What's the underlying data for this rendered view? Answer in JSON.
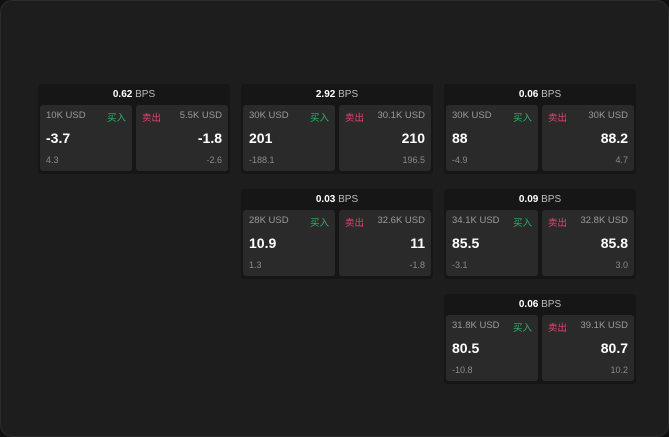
{
  "cards": [
    {
      "bps": "0.62",
      "bps_unit": "BPS",
      "bid_size": "10K USD",
      "buy_label": "买入",
      "bid": "-3.7",
      "bid_chg": "4.3",
      "sell_label": "卖出",
      "ask_size": "5.5K USD",
      "ask": "-1.8",
      "ask_chg": "-2.6"
    },
    {
      "bps": "2.92",
      "bps_unit": "BPS",
      "bid_size": "30K USD",
      "buy_label": "买入",
      "bid": "201",
      "bid_chg": "-188.1",
      "sell_label": "卖出",
      "ask_size": "30.1K USD",
      "ask": "210",
      "ask_chg": "196.5"
    },
    {
      "bps": "0.06",
      "bps_unit": "BPS",
      "bid_size": "30K USD",
      "buy_label": "买入",
      "bid": "88",
      "bid_chg": "-4.9",
      "sell_label": "卖出",
      "ask_size": "30K USD",
      "ask": "88.2",
      "ask_chg": "4.7"
    },
    {
      "bps": "0.03",
      "bps_unit": "BPS",
      "bid_size": "28K USD",
      "buy_label": "买入",
      "bid": "10.9",
      "bid_chg": "1.3",
      "sell_label": "卖出",
      "ask_size": "32.6K USD",
      "ask": "11",
      "ask_chg": "-1.8"
    },
    {
      "bps": "0.09",
      "bps_unit": "BPS",
      "bid_size": "34.1K USD",
      "buy_label": "买入",
      "bid": "85.5",
      "bid_chg": "-3.1",
      "sell_label": "卖出",
      "ask_size": "32.8K USD",
      "ask": "85.8",
      "ask_chg": "3.0"
    },
    {
      "bps": "0.06",
      "bps_unit": "BPS",
      "bid_size": "31.8K USD",
      "buy_label": "买入",
      "bid": "80.5",
      "bid_chg": "-10.8",
      "sell_label": "卖出",
      "ask_size": "39.1K USD",
      "ask": "80.7",
      "ask_chg": "10.2"
    }
  ],
  "colors": {
    "buy": "#2fb46a",
    "sell": "#e0456e"
  }
}
